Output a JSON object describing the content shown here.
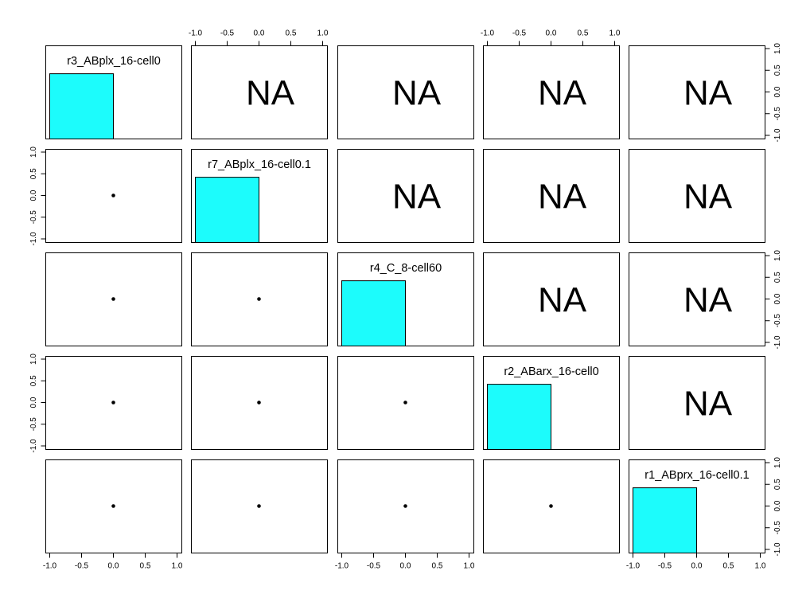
{
  "chart_data": {
    "type": "scatterplot-matrix",
    "variables": [
      "r3_ABplx_16-cell0",
      "r7_ABplx_16-cell0.1",
      "r4_C_8-cell60",
      "r2_ABarx_16-cell0",
      "r1_ABprx_16-cell0.1"
    ],
    "diagonal": {
      "type": "histogram",
      "bar_fill": "#1cfcfc",
      "bin": [
        -1.0,
        0.0
      ],
      "relative_height": 0.7
    },
    "lower_panels": {
      "type": "scatter",
      "points": [
        [
          0,
          0
        ]
      ]
    },
    "upper_panels": {
      "text": "NA"
    },
    "axis_range": [
      -1.0,
      1.0
    ],
    "ticks": [
      -1.0,
      -0.5,
      0.0,
      0.5,
      1.0
    ],
    "tick_labels": [
      "-1.0",
      "-0.5",
      "0.0",
      "0.5",
      "1.0"
    ]
  }
}
